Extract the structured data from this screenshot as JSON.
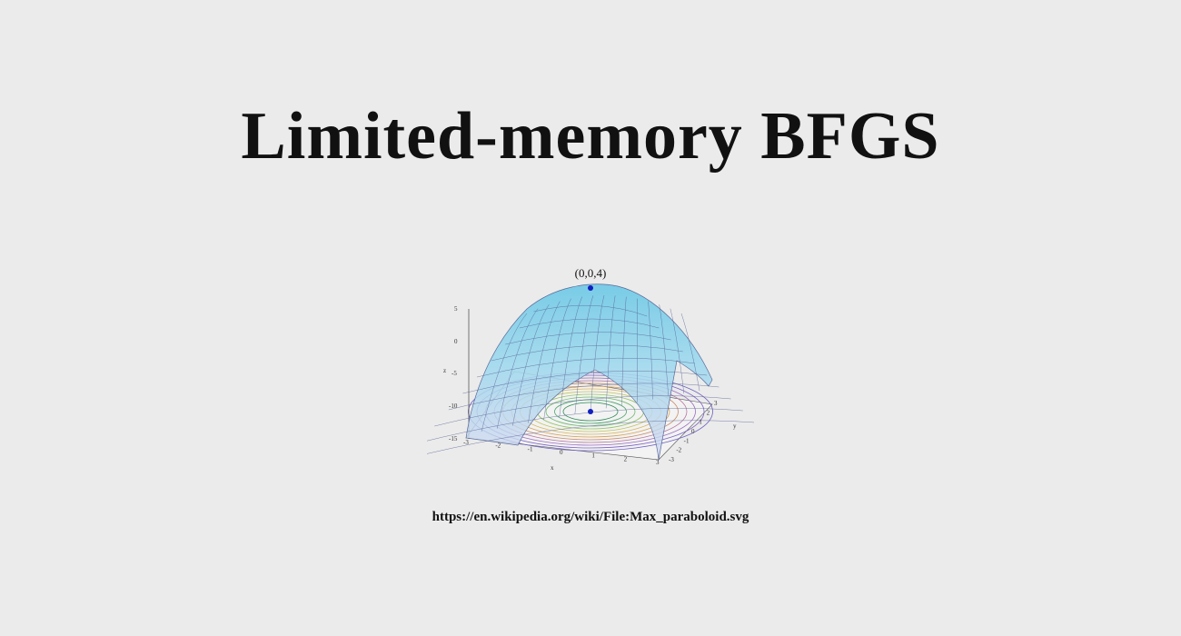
{
  "title": "Limited-memory BFGS",
  "figure": {
    "point_label": "(0,0,4)",
    "z_axis_label": "z",
    "x_axis_label": "x",
    "y_axis_label": "y",
    "z_ticks": [
      "5",
      "0",
      "-5",
      "-10",
      "-15"
    ],
    "x_ticks": [
      "-3",
      "-2",
      "-1",
      "0",
      "1",
      "2",
      "3"
    ],
    "y_ticks": [
      "-3",
      "-2",
      "-1",
      "0",
      "1",
      "2",
      "3"
    ],
    "surface_color": "#7fd0ea",
    "point_color": "#1020c0"
  },
  "caption": "https://en.wikipedia.org/wiki/File:Max_paraboloid.svg"
}
